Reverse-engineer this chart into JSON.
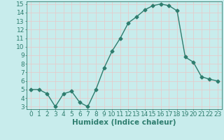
{
  "title": "",
  "xlabel": "Humidex (Indice chaleur)",
  "x": [
    0,
    1,
    2,
    3,
    4,
    5,
    6,
    7,
    8,
    9,
    10,
    11,
    12,
    13,
    14,
    15,
    16,
    17,
    18,
    19,
    20,
    21,
    22,
    23
  ],
  "y": [
    5,
    5,
    4.5,
    3,
    4.5,
    4.8,
    3.5,
    3,
    5,
    7.5,
    9.5,
    11,
    12.8,
    13.5,
    14.3,
    14.8,
    15,
    14.8,
    14.2,
    8.8,
    8.2,
    6.5,
    6.2,
    6.0
  ],
  "line_color": "#2e7d6e",
  "marker": "D",
  "marker_size": 2.5,
  "bg_color": "#c8ecec",
  "grid_major_color": "#e8c8c8",
  "grid_minor_color": "#ffffff",
  "axes_color": "#2e7d6e",
  "tick_label_color": "#2e7d6e",
  "xlabel_color": "#2e7d6e",
  "ylim": [
    3,
    15
  ],
  "xlim": [
    -0.5,
    23.5
  ],
  "yticks": [
    3,
    4,
    5,
    6,
    7,
    8,
    9,
    10,
    11,
    12,
    13,
    14,
    15
  ],
  "xticks": [
    0,
    1,
    2,
    3,
    4,
    5,
    6,
    7,
    8,
    9,
    10,
    11,
    12,
    13,
    14,
    15,
    16,
    17,
    18,
    19,
    20,
    21,
    22,
    23
  ],
  "xtick_labels": [
    "0",
    "1",
    "2",
    "3",
    "4",
    "5",
    "6",
    "7",
    "8",
    "9",
    "10",
    "11",
    "12",
    "13",
    "14",
    "15",
    "16",
    "17",
    "18",
    "19",
    "20",
    "21",
    "22",
    "23"
  ],
  "font_size": 6.5,
  "xlabel_font_size": 7.5,
  "linewidth": 1.0
}
